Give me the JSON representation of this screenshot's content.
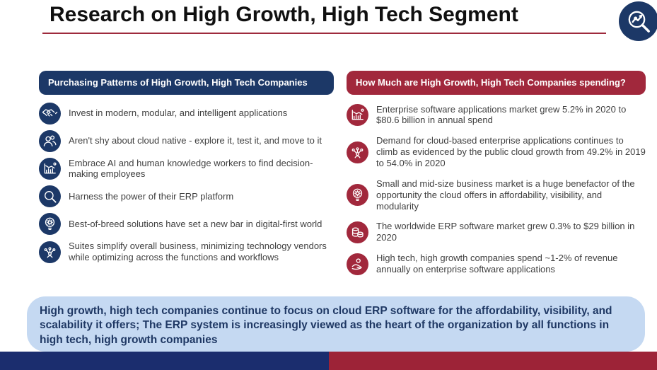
{
  "title": "Research on High Growth, High Tech Segment",
  "left_panel": {
    "header": "Purchasing Patterns of High Growth, High Tech Companies",
    "items": [
      {
        "icon": "handshake-icon",
        "text": "Invest in modern, modular, and intelligent applications"
      },
      {
        "icon": "users-icon",
        "text": "Aren't shy about cloud native - explore it, test it, and move to it"
      },
      {
        "icon": "bar-chart-arrow-icon",
        "text": "Embrace AI and human knowledge workers to find decision-making employees"
      },
      {
        "icon": "search-icon",
        "text": "Harness the power of their ERP platform"
      },
      {
        "icon": "gear-head-icon",
        "text": "Best-of-breed solutions have set a new bar in digital-first world"
      },
      {
        "icon": "network-icon",
        "text": "Suites simplify overall business, minimizing technology vendors while optimizing across the functions and workflows"
      }
    ]
  },
  "right_panel": {
    "header": "How Much are High Growth, High Tech Companies spending?",
    "items": [
      {
        "icon": "bar-chart-money-icon",
        "text": "Enterprise software applications market grew 5.2% in 2020 to $80.6 billion in annual spend"
      },
      {
        "icon": "network-icon",
        "text": "Demand for cloud-based enterprise applications continues to climb as evidenced by the public cloud growth from 49.2% in 2019 to 54.0% in 2020"
      },
      {
        "icon": "bulb-gear-icon",
        "text": "Small and mid-size business market is a huge benefactor of the opportunity the cloud offers in affordability, visibility, and modularity"
      },
      {
        "icon": "coins-icon",
        "text": "The worldwide ERP software market grew 0.3% to $29 billion in 2020"
      },
      {
        "icon": "hand-coin-icon",
        "text": "High tech, high growth companies spend ~1-2% of revenue annually on enterprise software applications"
      }
    ]
  },
  "summary": {
    "text": "High growth, high tech companies continue to focus on cloud ERP software for the affordability, visibility, and scalability it offers; The ERP system is increasingly viewed as the heart of the organization by all functions in high tech, high growth companies"
  },
  "colors": {
    "navy": "#1c3867",
    "crimson": "#a1283c",
    "footer_navy": "#1b2d6e",
    "footer_crimson": "#9d2337",
    "summary_bg": "#c5d9f2",
    "summary_text": "#1f3864",
    "underline": "#9e2a3c"
  }
}
